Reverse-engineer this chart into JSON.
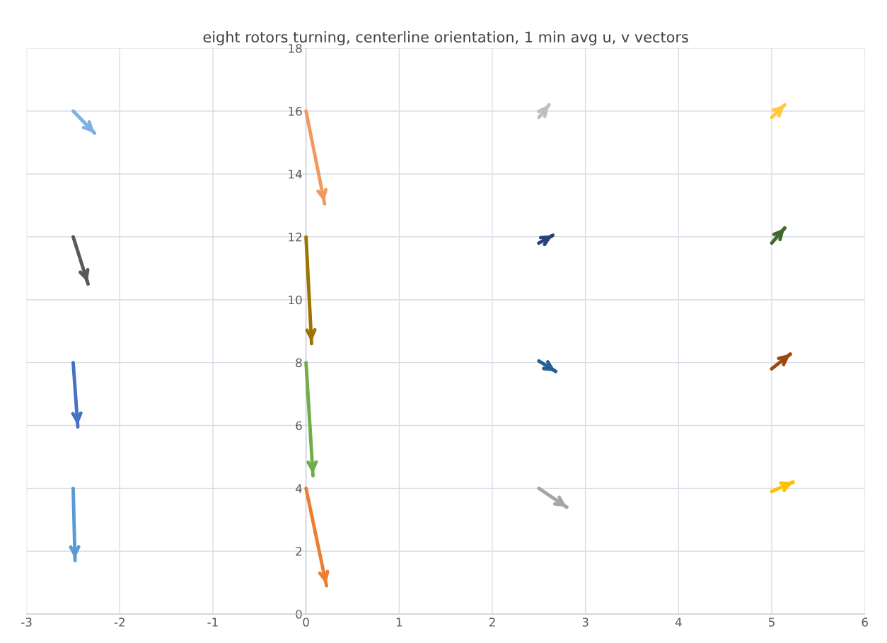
{
  "chart_data": {
    "type": "line",
    "title": "eight rotors turning, centerline orientation, 1 min avg u, v vectors",
    "xlim": [
      -3,
      6
    ],
    "xticks": [
      -3,
      -2,
      -1,
      0,
      1,
      2,
      3,
      4,
      5,
      6
    ],
    "ylim": [
      0,
      18
    ],
    "yticks": [
      0,
      2,
      4,
      6,
      8,
      10,
      12,
      14,
      16,
      18
    ],
    "grid": true,
    "line_style": "solid",
    "series": [
      {
        "color": "#7fb0e0",
        "x": [
          -2.5,
          -2.27
        ],
        "values": [
          16,
          15.3
        ]
      },
      {
        "color": "#595959",
        "x": [
          -2.5,
          -2.34
        ],
        "values": [
          12,
          10.5
        ]
      },
      {
        "color": "#4472c4",
        "x": [
          -2.5,
          -2.45
        ],
        "values": [
          8,
          5.95
        ]
      },
      {
        "color": "#5b9bd5",
        "x": [
          -2.5,
          -2.48
        ],
        "values": [
          4,
          1.7
        ]
      },
      {
        "color": "#f19a5f",
        "x": [
          0,
          0.2
        ],
        "values": [
          16,
          13.05
        ]
      },
      {
        "color": "#9e7400",
        "x": [
          0,
          0.06
        ],
        "values": [
          12,
          8.6
        ]
      },
      {
        "color": "#70ad47",
        "x": [
          0,
          0.075
        ],
        "values": [
          8,
          4.4
        ]
      },
      {
        "color": "#ed7d31",
        "x": [
          0,
          0.22
        ],
        "values": [
          4,
          0.9
        ]
      },
      {
        "color": "#bfbfbf",
        "x": [
          2.5,
          2.61
        ],
        "values": [
          15.8,
          16.2
        ]
      },
      {
        "color": "#ffc940",
        "x": [
          5,
          5.14
        ],
        "values": [
          15.8,
          16.2
        ]
      },
      {
        "color": "#264478",
        "x": [
          2.5,
          2.65
        ],
        "values": [
          11.8,
          12.05
        ]
      },
      {
        "color": "#43682b",
        "x": [
          5,
          5.14
        ],
        "values": [
          11.8,
          12.28
        ]
      },
      {
        "color": "#255e91",
        "x": [
          2.5,
          2.68
        ],
        "values": [
          8.05,
          7.72
        ]
      },
      {
        "color": "#9e480e",
        "x": [
          5,
          5.2
        ],
        "values": [
          7.8,
          8.27
        ]
      },
      {
        "color": "#a5a5a5",
        "x": [
          2.5,
          2.8
        ],
        "values": [
          4,
          3.4
        ]
      },
      {
        "color": "#ffc000",
        "x": [
          5,
          5.23
        ],
        "values": [
          3.9,
          4.2
        ]
      }
    ]
  }
}
